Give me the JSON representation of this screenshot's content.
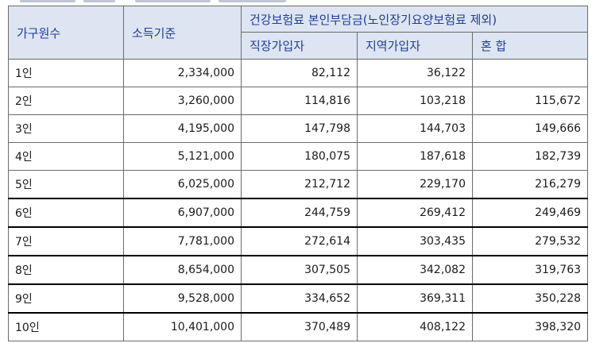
{
  "table": {
    "headers": {
      "household": "가구원수",
      "income": "소득기준",
      "premium_group": "건강보험료 본인부담금(노인장기요양보험료 제외)",
      "sub": [
        "직장가입자",
        "지역가입자",
        "혼 합"
      ]
    },
    "rows": [
      {
        "members": "1인",
        "income": "2,334,000",
        "workplace": "82,112",
        "regional": "36,122",
        "mixed": ""
      },
      {
        "members": "2인",
        "income": "3,260,000",
        "workplace": "114,816",
        "regional": "103,218",
        "mixed": "115,672"
      },
      {
        "members": "3인",
        "income": "4,195,000",
        "workplace": "147,798",
        "regional": "144,703",
        "mixed": "149,666"
      },
      {
        "members": "4인",
        "income": "5,121,000",
        "workplace": "180,075",
        "regional": "187,618",
        "mixed": "182,739"
      },
      {
        "members": "5인",
        "income": "6,025,000",
        "workplace": "212,712",
        "regional": "229,170",
        "mixed": "216,279"
      },
      {
        "members": "6인",
        "income": "6,907,000",
        "workplace": "244,759",
        "regional": "269,412",
        "mixed": "249,469"
      },
      {
        "members": "7인",
        "income": "7,781,000",
        "workplace": "272,614",
        "regional": "303,435",
        "mixed": "279,532"
      },
      {
        "members": "8인",
        "income": "8,654,000",
        "workplace": "307,505",
        "regional": "342,082",
        "mixed": "319,763"
      },
      {
        "members": "9인",
        "income": "9,528,000",
        "workplace": "334,652",
        "regional": "369,311",
        "mixed": "350,228"
      },
      {
        "members": "10인",
        "income": "10,401,000",
        "workplace": "370,489",
        "regional": "408,122",
        "mixed": "398,320"
      }
    ]
  }
}
